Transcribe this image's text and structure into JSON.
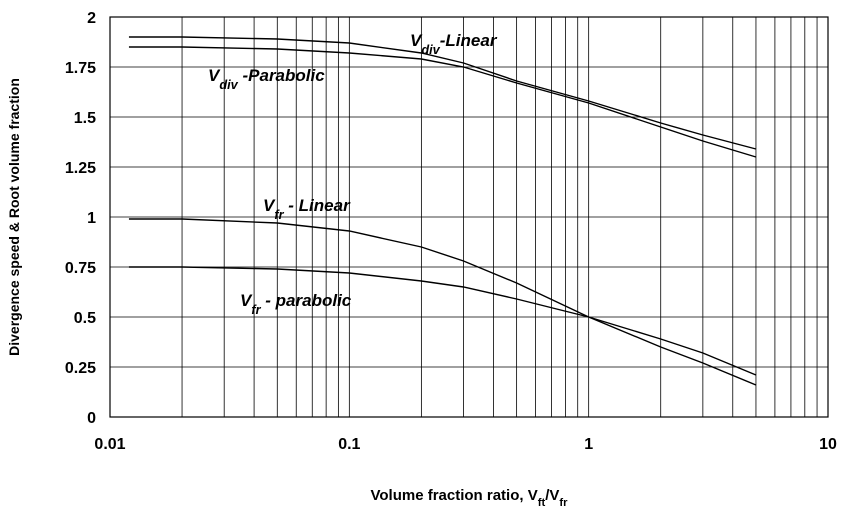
{
  "chart_data": {
    "type": "line",
    "xlabel": [
      "Volume fraction ratio, V",
      "ft",
      "/V",
      "fr"
    ],
    "ylabel": "Divergence speed & Root volume fraction",
    "x": [
      0.012,
      0.02,
      0.05,
      0.1,
      0.2,
      0.3,
      0.5,
      1,
      2,
      3,
      5
    ],
    "series": [
      {
        "color": "#000000",
        "values": [
          1.9,
          1.9,
          1.89,
          1.87,
          1.82,
          1.77,
          1.68,
          1.58,
          1.47,
          1.41,
          1.34
        ]
      },
      {
        "color": "#000000",
        "values": [
          1.85,
          1.85,
          1.84,
          1.82,
          1.79,
          1.75,
          1.67,
          1.57,
          1.45,
          1.38,
          1.3
        ]
      },
      {
        "color": "#000000",
        "values": [
          0.99,
          0.99,
          0.97,
          0.93,
          0.85,
          0.78,
          0.67,
          0.5,
          0.35,
          0.27,
          0.16
        ]
      },
      {
        "color": "#000000",
        "values": [
          0.75,
          0.75,
          0.74,
          0.72,
          0.68,
          0.65,
          0.59,
          0.5,
          0.39,
          0.32,
          0.21
        ]
      }
    ],
    "annotations": [
      [
        "V",
        "div",
        "-Linear"
      ],
      [
        "V",
        "div",
        " -Parabolic"
      ],
      [
        "V",
        "fr",
        " - Linear"
      ],
      [
        "V",
        "fr",
        " - parabolic"
      ]
    ],
    "xscale": "log",
    "xlim": [
      0.01,
      10
    ],
    "xticks": [
      0.01,
      0.1,
      1,
      10
    ],
    "ylim": [
      0,
      2
    ],
    "yticks": [
      0,
      0.25,
      0.5,
      0.75,
      1,
      1.25,
      1.5,
      1.75,
      2
    ],
    "grid": true
  }
}
